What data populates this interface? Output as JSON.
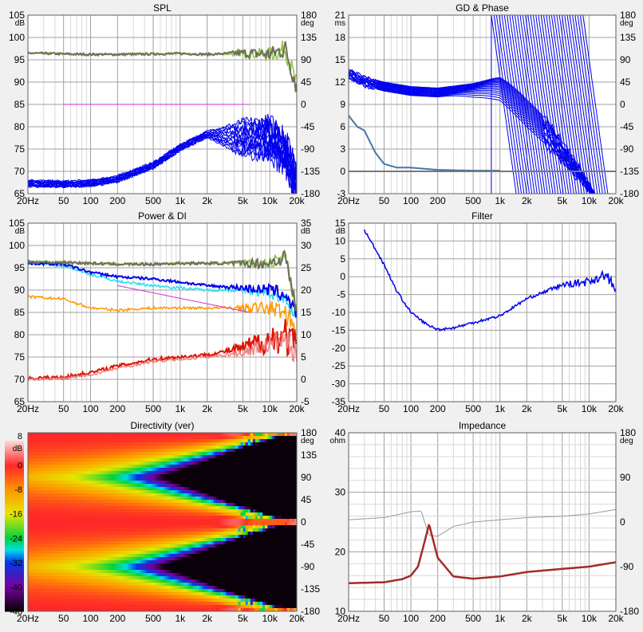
{
  "app": {
    "freq_ticks": [
      "20Hz",
      "50",
      "100",
      "200",
      "500",
      "1k",
      "2k",
      "5k",
      "10k",
      "20k"
    ]
  },
  "colors": {
    "frame_bg": "#f0f0f0",
    "plot_bg": "#ffffff",
    "grid_major": "#a0a0a0",
    "grid_minor": "#d8d8d8",
    "blue": "#0000ee",
    "olive": "#6e6e5a",
    "green": "#8cc63f",
    "magenta": "#cc33cc",
    "cyan": "#22e0f0",
    "orange": "#ff9900",
    "red": "#dd1100",
    "pink": "#f08080",
    "steel": "#4477aa",
    "gray_line": "#777777",
    "darkred": "#a52a2a",
    "impedance_gray": "#999999"
  },
  "panels": {
    "spl": {
      "title": "SPL",
      "left_unit": "dB",
      "right_unit": "deg",
      "left_ticks": [
        "105",
        "100",
        "95",
        "90",
        "85",
        "80",
        "75",
        "70",
        "65"
      ],
      "right_ticks": [
        "180",
        "135",
        "90",
        "45",
        "0",
        "-45",
        "-90",
        "-135",
        "-180"
      ]
    },
    "gd": {
      "title": "GD & Phase",
      "left_unit": "ms",
      "right_unit": "deg",
      "left_ticks": [
        "21",
        "18",
        "15",
        "12",
        "9",
        "6",
        "3",
        "0",
        "-3"
      ],
      "right_ticks": [
        "180",
        "135",
        "90",
        "45",
        "0",
        "-45",
        "-90",
        "-135",
        "-180"
      ]
    },
    "power": {
      "title": "Power & DI",
      "left_unit": "dB",
      "right_unit": "dB",
      "left_ticks": [
        "105",
        "100",
        "95",
        "90",
        "85",
        "80",
        "75",
        "70",
        "65"
      ],
      "right_ticks": [
        "35",
        "30",
        "25",
        "20",
        "15",
        "10",
        "5",
        "0",
        "-5"
      ]
    },
    "filter": {
      "title": "Filter",
      "left_unit": "dB",
      "left_ticks": [
        "15",
        "10",
        "5",
        "0",
        "-5",
        "-10",
        "-15",
        "-20",
        "-25",
        "-30",
        "-35"
      ]
    },
    "directivity": {
      "title": "Directivity (ver)",
      "left_unit": "dB",
      "right_unit": "deg",
      "scale_ticks": [
        "8",
        "0",
        "-8",
        "-16",
        "-24",
        "-32",
        "-40",
        "-48"
      ],
      "right_ticks": [
        "180",
        "135",
        "90",
        "45",
        "0",
        "-45",
        "-90",
        "-135",
        "-180"
      ]
    },
    "impedance": {
      "title": "Impedance",
      "left_unit": "ohm",
      "right_unit": "deg",
      "left_ticks": [
        "40",
        "30",
        "20",
        "10"
      ],
      "right_ticks": [
        "180",
        "90",
        "0",
        "-90",
        "-180"
      ]
    }
  },
  "chart_data": [
    {
      "type": "line",
      "title": "SPL",
      "x_scale": "log",
      "xlim": [
        20,
        20000
      ],
      "ylim": [
        65,
        105
      ],
      "y2lim": [
        -180,
        180
      ],
      "series": [
        {
          "values_hz": [
            20,
            50,
            100,
            200,
            500,
            1000,
            2000,
            5000,
            10000,
            15000,
            20000
          ],
          "values": [
            96.5,
            96.3,
            96.2,
            96.2,
            96.3,
            96.4,
            96.2,
            96.5,
            96.2,
            97.5,
            89
          ]
        },
        {
          "values_hz": [
            20,
            50,
            100,
            200,
            500,
            1000,
            2000,
            5000,
            10000,
            15000,
            20000
          ],
          "values": [
            68,
            67.8,
            68,
            69,
            72,
            76,
            79,
            81,
            81,
            78,
            70
          ]
        }
      ]
    },
    {
      "type": "line",
      "title": "GD & Phase",
      "x_scale": "log",
      "xlim": [
        20,
        20000
      ],
      "ylim": [
        -3,
        21
      ],
      "y2lim": [
        -180,
        180
      ],
      "series": [
        {
          "values_hz": [
            20,
            30,
            50,
            100,
            200,
            500,
            1000,
            2000,
            5000
          ],
          "values": [
            12.5,
            11.5,
            10.8,
            10.2,
            10,
            10.6,
            11.5,
            10,
            9
          ]
        },
        {
          "values_hz": [
            20,
            25,
            30,
            40,
            50,
            70,
            100,
            200,
            500,
            1000
          ],
          "values": [
            7.5,
            6,
            5.5,
            2.5,
            1,
            0.5,
            0.5,
            0.2,
            0.1,
            0.1
          ]
        }
      ]
    },
    {
      "type": "line",
      "title": "Power & DI",
      "x_scale": "log",
      "xlim": [
        20,
        20000
      ],
      "ylim": [
        65,
        105
      ],
      "y2lim": [
        -5,
        35
      ],
      "series": [
        {
          "values_hz": [
            20,
            50,
            100,
            200,
            500,
            1000,
            2000,
            5000,
            10000,
            15000,
            20000
          ],
          "values": [
            96.3,
            96.2,
            96,
            95.8,
            95.8,
            96,
            96,
            96,
            96,
            97.5,
            85
          ]
        },
        {
          "values_hz": [
            20,
            50,
            100,
            200,
            500,
            1000,
            2000,
            5000,
            10000,
            15000,
            20000
          ],
          "values": [
            96,
            95.5,
            93.5,
            92,
            91,
            90.5,
            90,
            90,
            89,
            88,
            84
          ]
        },
        {
          "values_hz": [
            20,
            50,
            100,
            200,
            500,
            1000,
            2000,
            5000,
            10000,
            15000,
            20000
          ],
          "values": [
            96,
            95.8,
            94,
            93,
            92.5,
            91.8,
            91,
            90.5,
            90,
            89,
            85
          ]
        },
        {
          "values_hz": [
            20,
            50,
            100,
            200,
            500,
            1000,
            2000,
            5000,
            10000,
            15000,
            20000
          ],
          "values": [
            88.5,
            88,
            86,
            85.5,
            86,
            86,
            86,
            86,
            86,
            85,
            81
          ]
        },
        {
          "values_hz": [
            20,
            50,
            100,
            200,
            500,
            1000,
            2000,
            5000,
            10000,
            15000,
            20000
          ],
          "values": [
            70.2,
            70.5,
            71.5,
            73,
            74.5,
            75,
            75.5,
            77,
            79,
            80,
            76
          ]
        },
        {
          "values_hz": [
            20,
            50,
            100,
            200,
            500,
            1000,
            2000,
            5000,
            10000,
            15000,
            20000
          ],
          "values": [
            70,
            70.2,
            71,
            72.5,
            74,
            74.5,
            75,
            76,
            78,
            79,
            75
          ]
        }
      ]
    },
    {
      "type": "line",
      "title": "Filter",
      "x_scale": "log",
      "xlim": [
        20,
        20000
      ],
      "ylim": [
        -35,
        17
      ],
      "series": [
        {
          "values_hz": [
            30,
            50,
            70,
            100,
            150,
            200,
            300,
            500,
            700,
            1000,
            2000,
            5000,
            10000,
            15000,
            20000
          ],
          "values": [
            15,
            5,
            -3,
            -9,
            -12.5,
            -14,
            -13.5,
            -12,
            -11,
            -10,
            -5,
            -1,
            0,
            2,
            -2
          ]
        }
      ]
    },
    {
      "type": "heatmap",
      "title": "Directivity (ver)",
      "x_scale": "log",
      "xlim": [
        20,
        20000
      ],
      "ylim": [
        -180,
        180
      ],
      "zlim": [
        -48,
        8
      ]
    },
    {
      "type": "line",
      "title": "Impedance",
      "x_scale": "log",
      "xlim": [
        20,
        20000
      ],
      "ylim": [
        0,
        40
      ],
      "y2lim": [
        -180,
        180
      ],
      "series": [
        {
          "values_hz": [
            20,
            50,
            80,
            100,
            120,
            140,
            160,
            200,
            300,
            500,
            1000,
            2000,
            5000,
            10000,
            20000
          ],
          "values": [
            6.3,
            6.5,
            7.2,
            8,
            10,
            15,
            19.5,
            12,
            7.8,
            7.3,
            7.8,
            8.8,
            9.5,
            10,
            11
          ]
        },
        {
          "values_hz": [
            20,
            50,
            100,
            130,
            160,
            200,
            300,
            500,
            1000,
            2000,
            5000,
            10000,
            20000
          ],
          "values": [
            20.5,
            21,
            22.3,
            22.5,
            17,
            16.8,
            19,
            20,
            20.5,
            21,
            21.3,
            21.8,
            22.8
          ]
        }
      ]
    }
  ]
}
